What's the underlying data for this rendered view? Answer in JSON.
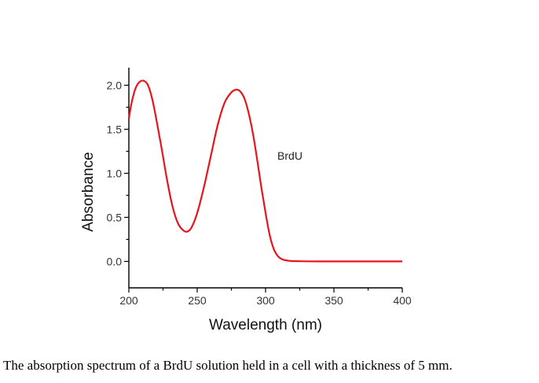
{
  "chart_data": {
    "type": "line",
    "xlabel": "Wavelength (nm)",
    "ylabel": "Absorbance",
    "xlim": [
      200,
      400
    ],
    "ylim": [
      -0.3,
      2.2
    ],
    "x_ticks": [
      "200",
      "250",
      "300",
      "350",
      "400"
    ],
    "y_ticks": [
      "0.0",
      "0.5",
      "1.0",
      "1.5",
      "2.0"
    ],
    "grid": false,
    "legend": "none",
    "annotation": "BrdU",
    "series": [
      {
        "color": "#e8141c",
        "x": [
          200,
          202,
          205,
          208,
          211,
          214,
          217,
          220,
          224,
          228,
          232,
          236,
          240,
          243,
          246,
          250,
          255,
          260,
          265,
          270,
          275,
          279,
          282,
          285,
          288,
          291,
          294,
          297,
          300,
          303,
          306,
          309,
          312,
          315,
          318,
          321,
          325,
          330,
          340,
          360,
          380,
          400
        ],
        "y": [
          1.62,
          1.8,
          1.97,
          2.04,
          2.05,
          2.0,
          1.85,
          1.62,
          1.28,
          0.92,
          0.62,
          0.43,
          0.35,
          0.34,
          0.39,
          0.55,
          0.85,
          1.2,
          1.55,
          1.8,
          1.92,
          1.95,
          1.92,
          1.83,
          1.66,
          1.43,
          1.14,
          0.83,
          0.55,
          0.3,
          0.14,
          0.06,
          0.025,
          0.012,
          0.006,
          0.003,
          0.002,
          0.001,
          0.0,
          0.0,
          0.0,
          0.0
        ]
      }
    ]
  },
  "caption": "The absorption spectrum of a BrdU solution held in a cell with a thickness of 5 mm."
}
